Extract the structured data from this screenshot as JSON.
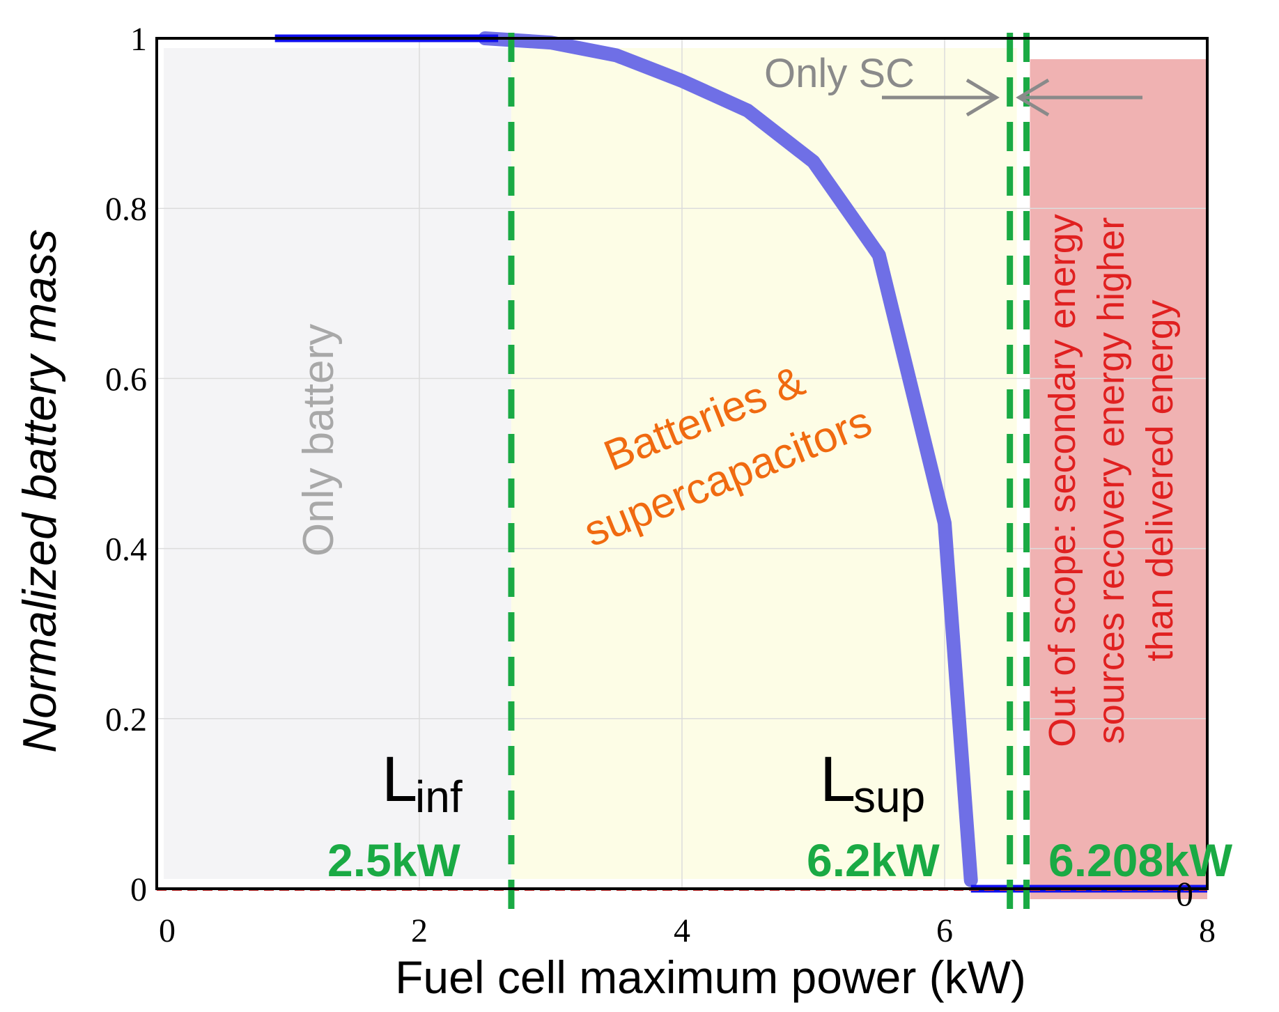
{
  "chart_data": {
    "type": "line",
    "xlabel": "Fuel cell maximum power (kW)",
    "ylabel": "Normalized battery mass",
    "xlim": [
      0,
      8
    ],
    "ylim": [
      0,
      1
    ],
    "x_ticks": [
      "0",
      "2",
      "4",
      "6",
      "8"
    ],
    "y_ticks": [
      "0",
      "0.2",
      "0.4",
      "0.6",
      "0.8",
      "1"
    ],
    "grid": true,
    "series": [
      {
        "color": "#6f6fe6",
        "x": [
          2.5,
          3.0,
          3.5,
          4.0,
          4.5,
          5.0,
          5.5,
          6.0,
          6.2
        ],
        "y": [
          1.0,
          0.995,
          0.98,
          0.95,
          0.915,
          0.855,
          0.745,
          0.43,
          0.01
        ]
      },
      {
        "color": "#1010ee",
        "x": [
          0.9,
          2.6
        ],
        "y": [
          1.0,
          1.0
        ]
      },
      {
        "color": "#1010ee",
        "x": [
          6.2,
          8.0
        ],
        "y": [
          0.0,
          0.0
        ]
      }
    ],
    "regions": [
      {
        "label": "Only battery",
        "x_from": 0,
        "x_to": 2.7,
        "color": "#f4f4f6",
        "text_color": "#a8a8a8"
      },
      {
        "label_line1": "Batteries  &",
        "label_line2": "supercapacitors",
        "x_from": 2.7,
        "x_to": 6.55,
        "color": "#fdfde6",
        "text_color": "#f06a10"
      },
      {
        "label_line1": "Out of scope: secondary energy",
        "label_line2": "sources  recovery energy higher",
        "label_line3": "than delivered energy",
        "x_from": 6.65,
        "x_to": 8.0,
        "color": "#eeaaaa",
        "text_color": "#e02020"
      }
    ],
    "limits": [
      {
        "name": "L",
        "subscript": "inf",
        "value_label": "2.5kW",
        "x": 2.7
      },
      {
        "name": "L",
        "subscript": "sup",
        "value_label": "6.2kW",
        "x": 6.55
      },
      {
        "value_label": "6.208kW",
        "x": 6.65
      }
    ],
    "annotations": {
      "only_sc": "Only SC",
      "stray_zero": "0"
    },
    "colors": {
      "limit_line": "#1aaa44",
      "value_label": "#1aaa44",
      "only_sc": "#8a8a8a",
      "arrow": "#8a8a8a"
    }
  }
}
